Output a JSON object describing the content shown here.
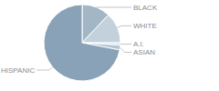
{
  "chart_data": {
    "type": "pie",
    "categories": [
      "BLACK",
      "WHITE",
      "A.I.",
      "ASIAN",
      "HISPANIC"
    ],
    "values": [
      12,
      13,
      1,
      2,
      72
    ],
    "colors": [
      "#a3b6c6",
      "#c3d1dc",
      "#d6e0e8",
      "#b3c4d2",
      "#8aa2b7"
    ]
  }
}
